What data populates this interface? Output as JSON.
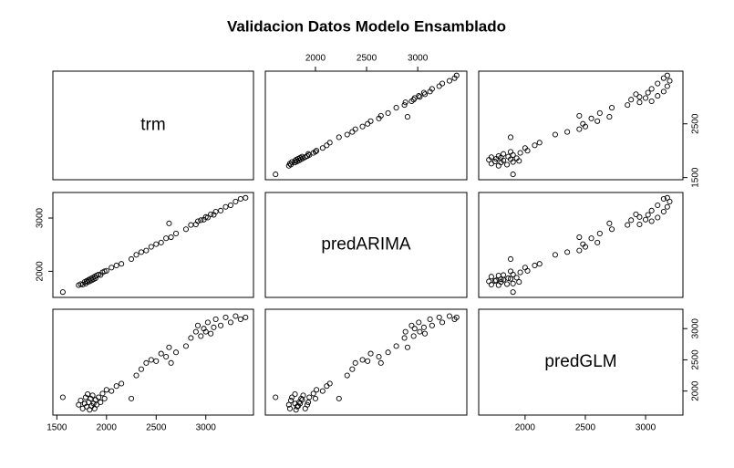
{
  "chart_data": {
    "type": "scatter_matrix",
    "title": "Validacion Datos Modelo Ensamblado",
    "variables": [
      {
        "name": "trm",
        "lim": [
          1460,
          3480
        ],
        "xticks": [
          1500,
          2000,
          2500,
          3000
        ],
        "yticks": [
          1500,
          2500
        ],
        "values": [
          1560,
          1720,
          1740,
          1760,
          1780,
          1790,
          1800,
          1810,
          1820,
          1830,
          1840,
          1850,
          1860,
          1870,
          1880,
          1890,
          1900,
          1920,
          1940,
          1960,
          1980,
          2000,
          2050,
          2100,
          2150,
          2250,
          2300,
          2350,
          2400,
          2450,
          2500,
          2550,
          2600,
          2650,
          2700,
          2800,
          2850,
          2900,
          2920,
          2950,
          2980,
          3000,
          3020,
          3050,
          3080,
          3100,
          3150,
          3200,
          3250,
          3300,
          3350,
          3400,
          2630
        ]
      },
      {
        "name": "predARIMA",
        "lim": [
          1510,
          3480
        ],
        "xticks": [
          2000,
          2500,
          3000
        ],
        "yticks": [
          2000,
          3000
        ],
        "values": [
          1610,
          1740,
          1760,
          1750,
          1800,
          1770,
          1820,
          1800,
          1840,
          1810,
          1860,
          1830,
          1880,
          1850,
          1900,
          1870,
          1920,
          1940,
          1930,
          1980,
          2000,
          2010,
          2070,
          2110,
          2140,
          2230,
          2310,
          2360,
          2390,
          2460,
          2510,
          2540,
          2620,
          2640,
          2710,
          2790,
          2870,
          2880,
          2940,
          2960,
          2970,
          3020,
          3010,
          3070,
          3060,
          3120,
          3140,
          3210,
          3240,
          3310,
          3360,
          3380,
          2900
        ]
      },
      {
        "name": "predGLM",
        "lim": [
          1615,
          3310
        ],
        "xticks": [
          2000,
          2500,
          3000
        ],
        "yticks": [
          2000,
          2500,
          3000
        ],
        "values": [
          1900,
          1780,
          1850,
          1720,
          1800,
          1900,
          1750,
          1950,
          1820,
          1700,
          1880,
          1760,
          1930,
          1800,
          1720,
          1860,
          1780,
          1900,
          1820,
          1960,
          1880,
          2020,
          2000,
          2080,
          2120,
          1880,
          2250,
          2350,
          2450,
          2500,
          2480,
          2600,
          2550,
          2450,
          2620,
          2720,
          2850,
          2950,
          3050,
          2880,
          3000,
          2950,
          3100,
          2920,
          3020,
          3150,
          3050,
          3180,
          3100,
          3200,
          3150,
          3180,
          2700
        ]
      }
    ]
  }
}
